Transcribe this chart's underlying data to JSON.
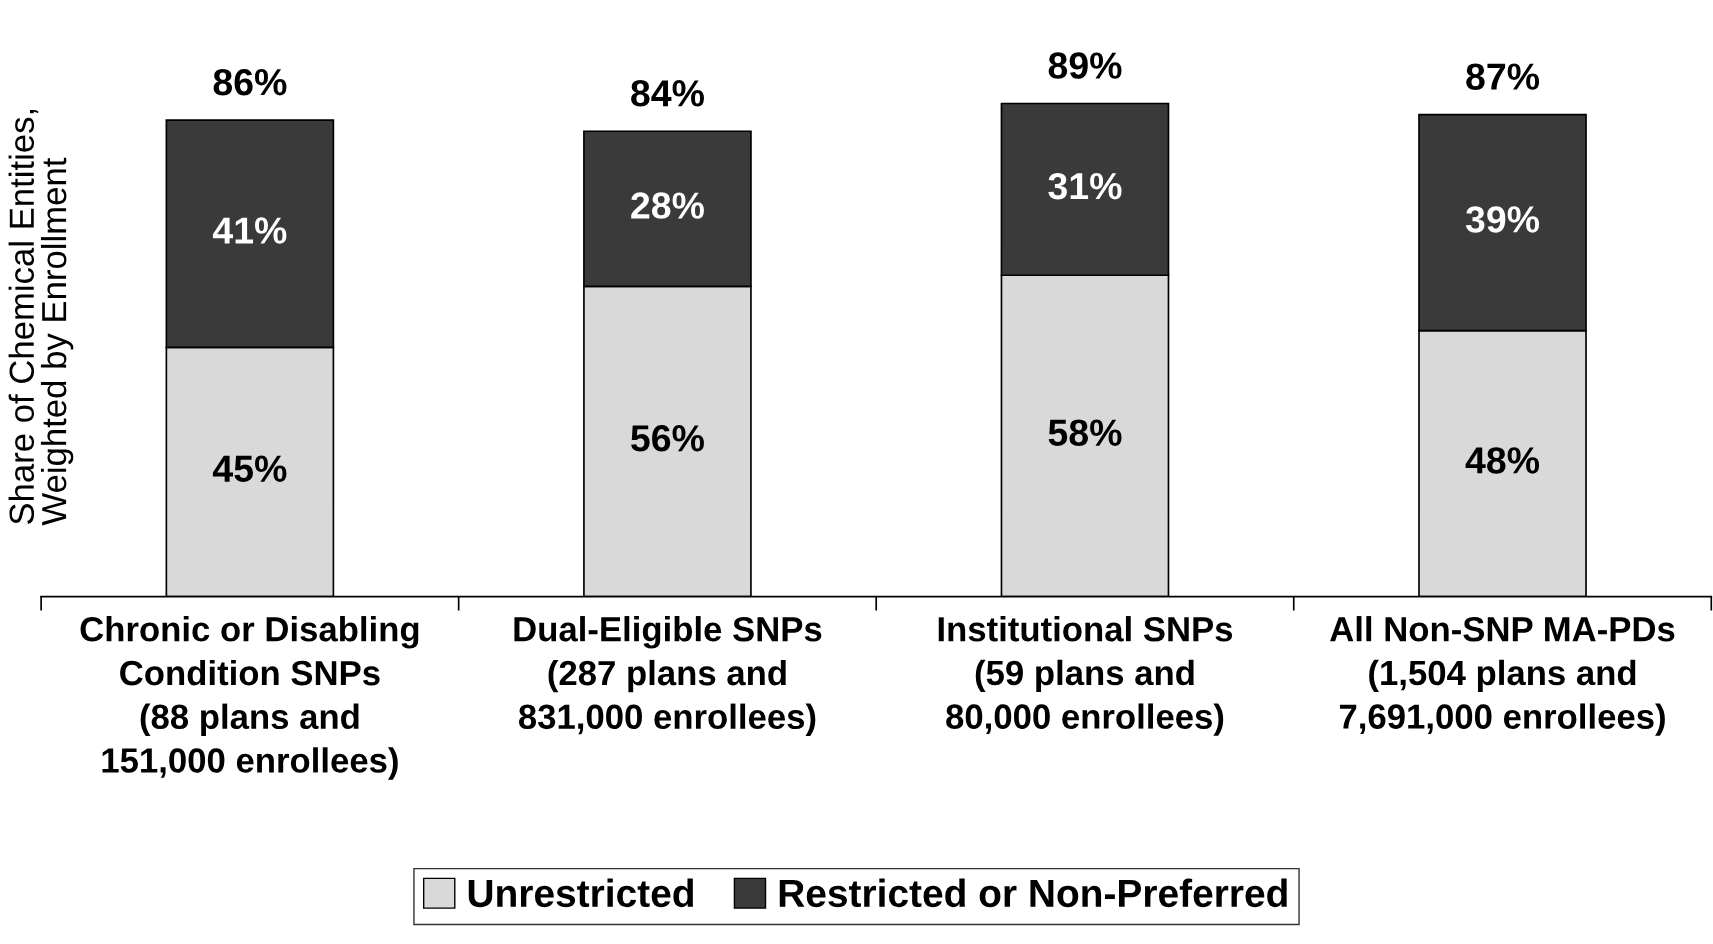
{
  "chart_data": {
    "type": "bar",
    "stacked": true,
    "ylabel": "Share of Chemical Entities,\nWeighted by Enrollment",
    "categories": [
      "Chronic or Disabling\nCondition SNPs\n(88 plans and\n151,000 enrollees)",
      "Dual-Eligible SNPs\n(287 plans and\n831,000 enrollees)",
      "Institutional SNPs\n(59 plans and\n80,000 enrollees)",
      "All Non-SNP MA-PDs\n(1,504 plans and\n7,691,000 enrollees)"
    ],
    "series": [
      {
        "name": "Unrestricted",
        "color": "#d9d9d9",
        "values": [
          45,
          56,
          58,
          48
        ],
        "value_labels": [
          "45%",
          "56%",
          "58%",
          "48%"
        ]
      },
      {
        "name": "Restricted or Non-Preferred",
        "color": "#3a3a3a",
        "values": [
          41,
          28,
          31,
          39
        ],
        "value_labels": [
          "41%",
          "28%",
          "31%",
          "39%"
        ]
      }
    ],
    "totals": [
      "86%",
      "84%",
      "89%",
      "87%"
    ],
    "tick_labels": "x",
    "legend": "bottom",
    "grid": false
  }
}
